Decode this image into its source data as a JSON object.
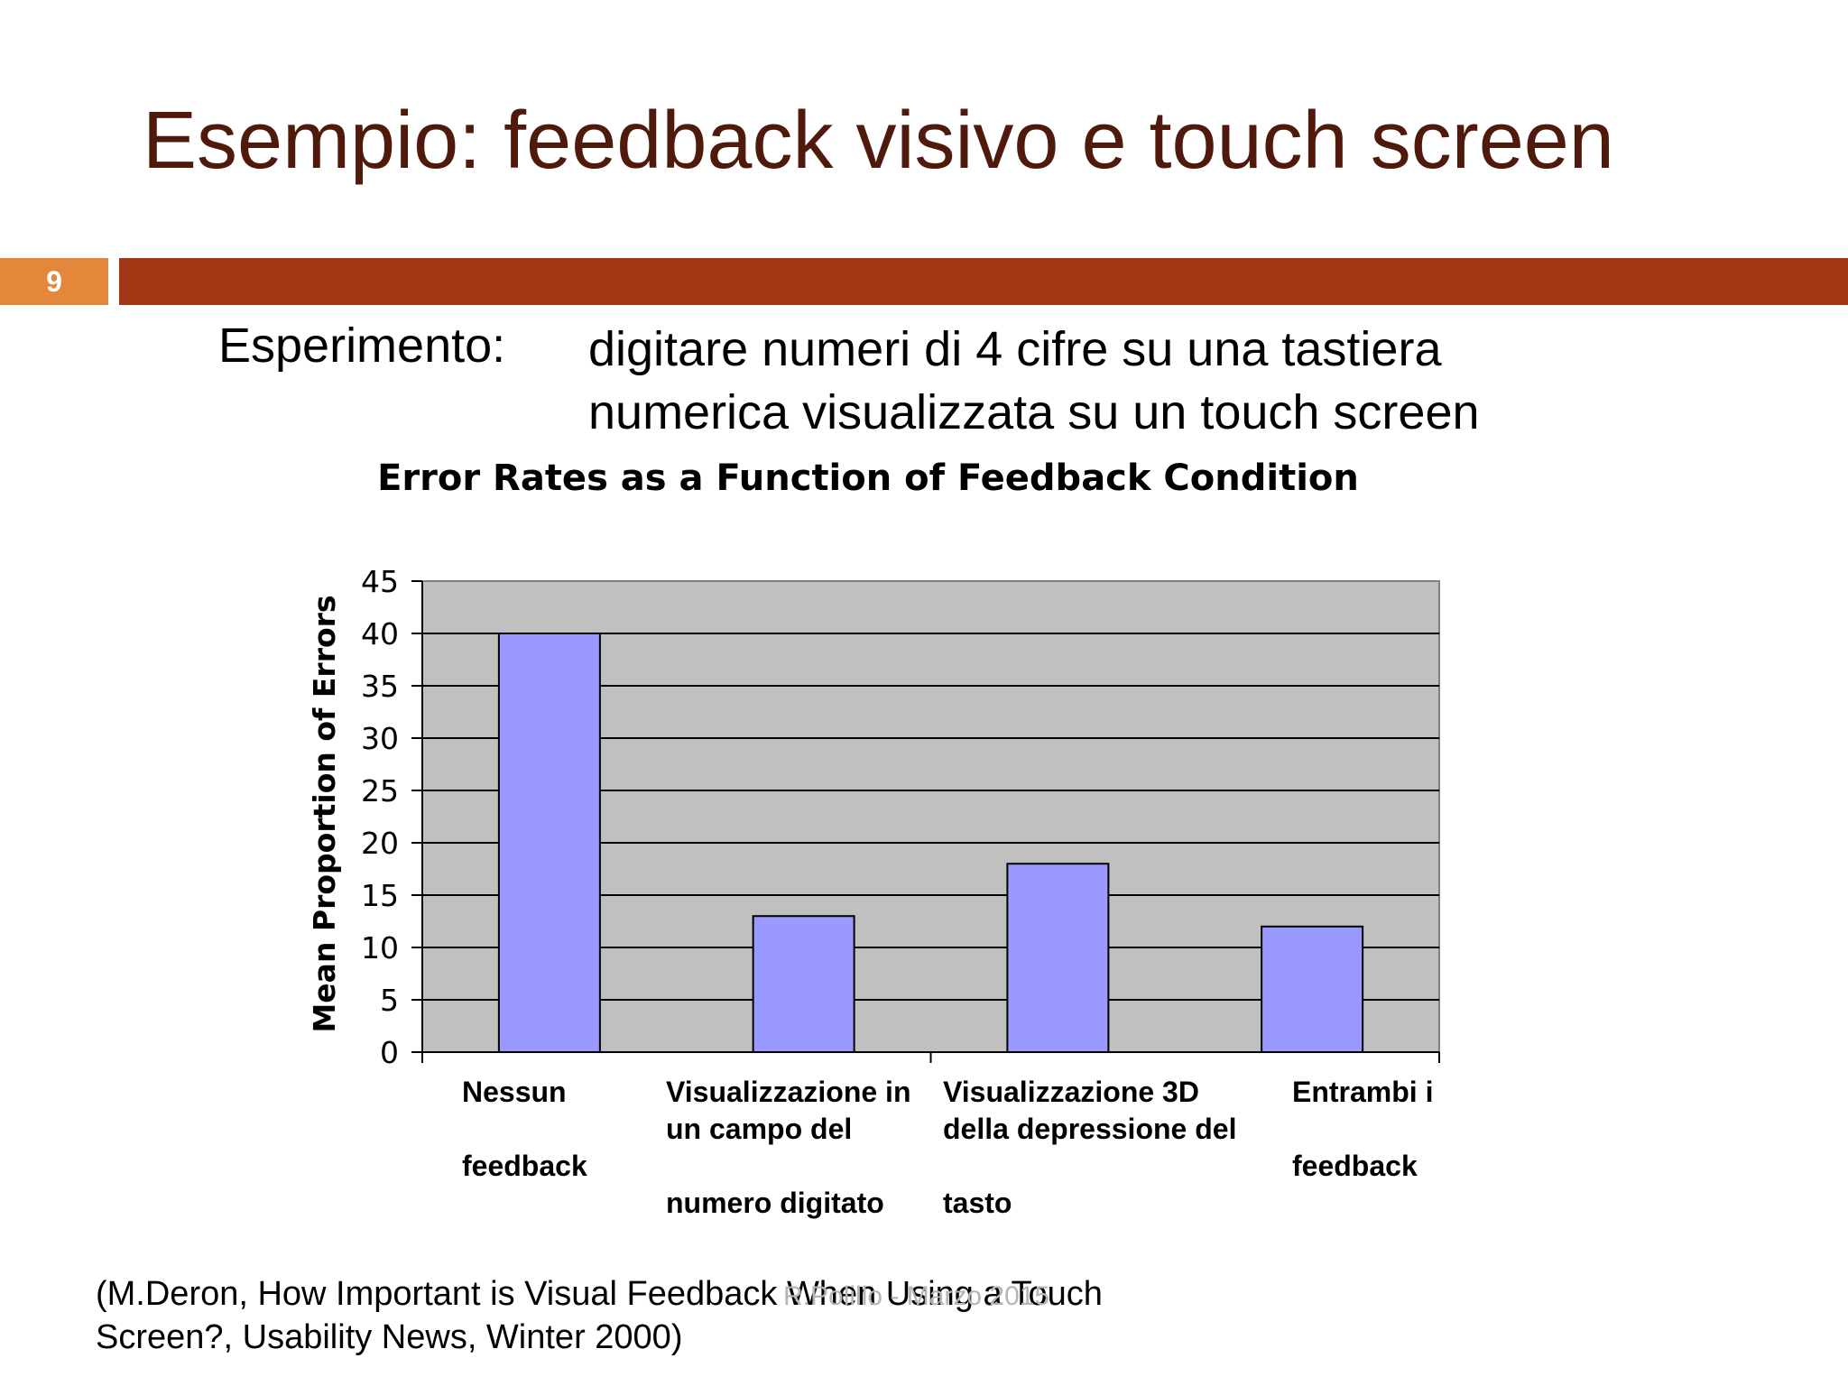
{
  "slide": {
    "title": "Esempio: feedback visivo e touch screen",
    "page_number": "9",
    "experiment_label": "Esperimento:",
    "experiment_lines": [
      "digitare numeri di 4 cifre su una tastiera",
      "numerica visualizzata su un touch screen"
    ],
    "citation_lines": [
      "(M.Deron, How Important is Visual Feedback When Using a Touch",
      "Screen?, Usability News, Winter 2000)"
    ],
    "footer": "R.Polillo - Marzo 2015"
  },
  "colors": {
    "title": "#4f1a0c",
    "band": "#a33515",
    "page_box": "#e4873a",
    "plot_bg": "#c0c0c0",
    "bar_fill": "#9999ff"
  },
  "chart_data": {
    "type": "bar",
    "title": "Error Rates as a Function of Feedback Condition",
    "ylabel": "Mean Proportion of Errors",
    "xlabel": "",
    "ylim": [
      0,
      45
    ],
    "yticks": [
      0,
      5,
      10,
      15,
      20,
      25,
      30,
      35,
      40,
      45
    ],
    "grid": true,
    "categories": [
      [
        "Nessun",
        "",
        "feedback"
      ],
      [
        "Visualizzazione in",
        "un campo del",
        "",
        "numero digitato"
      ],
      [
        "Visualizzazione 3D",
        "della depressione del",
        "",
        "tasto"
      ],
      [
        "Entrambi i",
        "",
        "feedback"
      ]
    ],
    "values": [
      40,
      13,
      18,
      12
    ]
  }
}
